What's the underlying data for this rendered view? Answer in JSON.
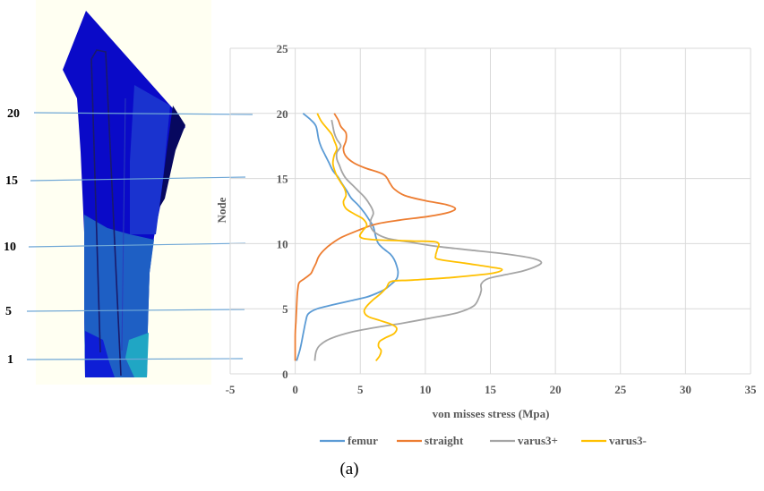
{
  "model_labels": [
    "20",
    "15",
    "10",
    "5",
    "1"
  ],
  "caption": "(a)",
  "chart_data": {
    "type": "line",
    "xlabel": "von misses stress (Mpa)",
    "ylabel": "Node",
    "xlim": [
      -5,
      35
    ],
    "ylim": [
      0,
      25
    ],
    "xticks": [
      "-5",
      "0",
      "5",
      "10",
      "15",
      "20",
      "25",
      "30",
      "35"
    ],
    "yticks": [
      "0",
      "5",
      "10",
      "15",
      "20",
      "25"
    ],
    "grid": true,
    "legend_position": "bottom",
    "series": [
      {
        "name": "femur",
        "color": "#5B9BD5",
        "points": [
          [
            0.6,
            20
          ],
          [
            1.2,
            19.5
          ],
          [
            1.6,
            19
          ],
          [
            1.8,
            18
          ],
          [
            2.0,
            17.4
          ],
          [
            2.3,
            16.8
          ],
          [
            2.6,
            16.2
          ],
          [
            2.9,
            15.6
          ],
          [
            3.3,
            15.1
          ],
          [
            3.6,
            14.6
          ],
          [
            4.0,
            14.0
          ],
          [
            4.3,
            13.5
          ],
          [
            4.8,
            13.0
          ],
          [
            5.3,
            12.4
          ],
          [
            5.7,
            11.8
          ],
          [
            6.0,
            11.3
          ],
          [
            6.2,
            10.5
          ],
          [
            6.4,
            10.0
          ],
          [
            6.8,
            9.6
          ],
          [
            7.3,
            9.2
          ],
          [
            7.6,
            8.8
          ],
          [
            7.8,
            8.3
          ],
          [
            7.9,
            7.8
          ],
          [
            7.8,
            7.3
          ],
          [
            7.4,
            6.9
          ],
          [
            6.9,
            6.5
          ],
          [
            6.3,
            6.2
          ],
          [
            5.5,
            5.9
          ],
          [
            4.2,
            5.6
          ],
          [
            2.9,
            5.3
          ],
          [
            1.7,
            5.0
          ],
          [
            1.0,
            4.6
          ],
          [
            0.8,
            4.0
          ],
          [
            0.6,
            3.0
          ],
          [
            0.4,
            2.0
          ],
          [
            0.2,
            1.3
          ],
          [
            0.1,
            1.0
          ]
        ]
      },
      {
        "name": "straight",
        "color": "#ED7D31",
        "points": [
          [
            3.0,
            20
          ],
          [
            3.3,
            19.5
          ],
          [
            3.5,
            19
          ],
          [
            3.9,
            18.5
          ],
          [
            3.9,
            17.9
          ],
          [
            3.7,
            17.3
          ],
          [
            3.9,
            16.7
          ],
          [
            4.5,
            16.2
          ],
          [
            5.4,
            15.8
          ],
          [
            6.8,
            15.3
          ],
          [
            7.3,
            14.6
          ],
          [
            7.6,
            14.2
          ],
          [
            8.4,
            13.7
          ],
          [
            10.0,
            13.3
          ],
          [
            11.6,
            13.0
          ],
          [
            12.3,
            12.7
          ],
          [
            11.8,
            12.4
          ],
          [
            10.3,
            12.1
          ],
          [
            8.0,
            11.8
          ],
          [
            6.2,
            11.5
          ],
          [
            4.8,
            11.0
          ],
          [
            3.6,
            10.5
          ],
          [
            2.8,
            10.0
          ],
          [
            2.2,
            9.5
          ],
          [
            1.8,
            9.0
          ],
          [
            1.6,
            8.5
          ],
          [
            1.4,
            8.1
          ],
          [
            1.2,
            7.7
          ],
          [
            0.7,
            7.3
          ],
          [
            0.3,
            7.0
          ],
          [
            0.2,
            6.5
          ],
          [
            0.15,
            6.0
          ],
          [
            0.1,
            5.0
          ],
          [
            0.05,
            4.0
          ],
          [
            0.0,
            3.0
          ],
          [
            0.0,
            1.0
          ]
        ]
      },
      {
        "name": "varus3+",
        "color": "#A5A5A5",
        "points": [
          [
            2.8,
            19.5
          ],
          [
            2.9,
            19
          ],
          [
            3.0,
            18.5
          ],
          [
            3.2,
            18
          ],
          [
            3.5,
            17.5
          ],
          [
            3.2,
            17.0
          ],
          [
            3.2,
            16.5
          ],
          [
            3.4,
            16.0
          ],
          [
            3.6,
            15.5
          ],
          [
            3.9,
            15.0
          ],
          [
            4.4,
            14.5
          ],
          [
            4.9,
            14.0
          ],
          [
            5.3,
            13.6
          ],
          [
            5.6,
            13.2
          ],
          [
            5.9,
            12.7
          ],
          [
            6.0,
            12.3
          ],
          [
            5.8,
            11.8
          ],
          [
            5.8,
            11.3
          ],
          [
            6.2,
            10.8
          ],
          [
            7.1,
            10.4
          ],
          [
            8.9,
            10.1
          ],
          [
            10.8,
            9.8
          ],
          [
            13.5,
            9.5
          ],
          [
            16.2,
            9.2
          ],
          [
            18.1,
            8.9
          ],
          [
            18.9,
            8.6
          ],
          [
            18.6,
            8.3
          ],
          [
            17.5,
            7.9
          ],
          [
            16.1,
            7.6
          ],
          [
            14.8,
            7.3
          ],
          [
            14.3,
            6.9
          ],
          [
            14.3,
            6.4
          ],
          [
            14.1,
            5.8
          ],
          [
            13.7,
            5.2
          ],
          [
            12.5,
            4.7
          ],
          [
            10.5,
            4.3
          ],
          [
            8.3,
            3.9
          ],
          [
            6.4,
            3.6
          ],
          [
            4.3,
            3.2
          ],
          [
            2.7,
            2.7
          ],
          [
            1.9,
            2.2
          ],
          [
            1.6,
            1.7
          ],
          [
            1.5,
            1.0
          ]
        ]
      },
      {
        "name": "varus3-",
        "color": "#FFC000",
        "points": [
          [
            1.7,
            20
          ],
          [
            2.0,
            19.4
          ],
          [
            2.4,
            18.9
          ],
          [
            2.8,
            18.4
          ],
          [
            3.0,
            17.9
          ],
          [
            3.2,
            17.3
          ],
          [
            3.0,
            16.8
          ],
          [
            2.9,
            16.2
          ],
          [
            3.0,
            15.7
          ],
          [
            3.2,
            15.2
          ],
          [
            3.5,
            14.7
          ],
          [
            3.8,
            14.2
          ],
          [
            3.9,
            13.7
          ],
          [
            3.7,
            13.2
          ],
          [
            3.9,
            12.7
          ],
          [
            4.5,
            12.3
          ],
          [
            5.2,
            11.9
          ],
          [
            5.5,
            11.4
          ],
          [
            5.2,
            11.0
          ],
          [
            5.0,
            10.5
          ],
          [
            6.0,
            10.3
          ],
          [
            9.0,
            10.2
          ],
          [
            10.9,
            10.1
          ],
          [
            10.9,
            9.5
          ],
          [
            10.8,
            9.1
          ],
          [
            11.0,
            8.8
          ],
          [
            13.0,
            8.5
          ],
          [
            15.0,
            8.2
          ],
          [
            15.9,
            8.0
          ],
          [
            15.0,
            7.7
          ],
          [
            12.0,
            7.4
          ],
          [
            9.0,
            7.2
          ],
          [
            7.4,
            7.1
          ],
          [
            7.0,
            6.6
          ],
          [
            6.5,
            6.1
          ],
          [
            6.0,
            5.7
          ],
          [
            5.5,
            5.2
          ],
          [
            5.3,
            4.8
          ],
          [
            5.6,
            4.4
          ],
          [
            6.5,
            4.1
          ],
          [
            7.4,
            3.8
          ],
          [
            7.8,
            3.5
          ],
          [
            7.6,
            3.1
          ],
          [
            7.0,
            2.8
          ],
          [
            6.5,
            2.5
          ],
          [
            6.4,
            2.1
          ],
          [
            6.6,
            1.8
          ],
          [
            6.5,
            1.4
          ],
          [
            6.2,
            1.0
          ]
        ]
      }
    ]
  }
}
